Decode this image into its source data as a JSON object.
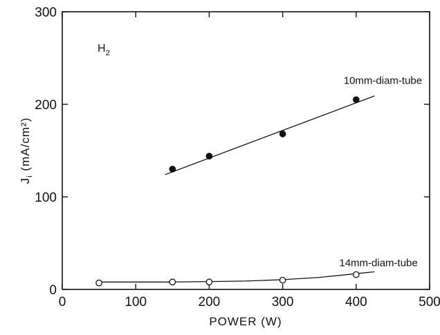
{
  "chart_data": {
    "type": "scatter",
    "title": "",
    "gas_label": "H",
    "gas_subscript": "2",
    "xlabel": "POWER (W)",
    "ylabel": "J",
    "ylabel_subscript": "i",
    "ylabel_units": " (mA/cm²)",
    "xlim": [
      0,
      500
    ],
    "ylim": [
      0,
      300
    ],
    "xticks": [
      0,
      100,
      200,
      300,
      400,
      500
    ],
    "yticks": [
      0,
      100,
      200,
      300
    ],
    "grid": false,
    "series": [
      {
        "name": "10mm-diam-tube",
        "label_text": "10mm-diam-tube",
        "marker": "filled-circle",
        "x": [
          150,
          200,
          300,
          400
        ],
        "y": [
          130,
          144,
          168,
          205
        ],
        "fit_line": {
          "x": [
            140,
            425
          ],
          "y": [
            124,
            209
          ]
        },
        "label_anchor": {
          "x": 383,
          "y": 222
        }
      },
      {
        "name": "14mm-diam-tube",
        "label_text": "14mm-diam-tube",
        "marker": "open-circle",
        "x": [
          50,
          150,
          200,
          300,
          400
        ],
        "y": [
          7,
          8,
          8,
          10,
          16
        ],
        "fit_line": {
          "x": [
            50,
            150,
            200,
            250,
            300,
            350,
            400,
            425
          ],
          "y": [
            8,
            8,
            8.5,
            9,
            10.5,
            13,
            17,
            19
          ]
        },
        "label_anchor": {
          "x": 377,
          "y": 25
        }
      }
    ]
  }
}
